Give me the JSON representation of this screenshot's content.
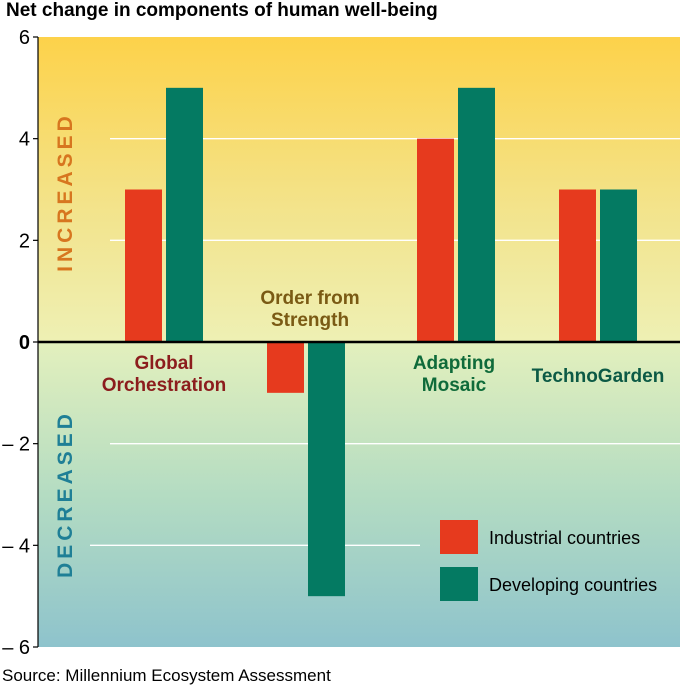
{
  "title": "Net change in components of human well-being",
  "source": "Source: Millennium Ecosystem Assessment",
  "colors": {
    "industrial": "#e63a1e",
    "developing": "#047a62",
    "increased_label": "#d7761f",
    "decreased_label": "#1f7f96",
    "label_global": "#8c1d1d",
    "label_order": "#7a5a14",
    "label_adapting": "#0f6b3a",
    "label_techno": "#0c5a45"
  },
  "chart_data": {
    "type": "bar",
    "title": "Net change in components of human well-being",
    "xlabel": "",
    "ylabel": "",
    "ylim": [
      -6,
      6
    ],
    "yticks": [
      6,
      4,
      2,
      0,
      -2,
      -4,
      -6
    ],
    "ytick_labels": [
      "6",
      "4",
      "2",
      "0",
      "– 2",
      "– 4",
      "– 6"
    ],
    "region_labels": {
      "upper": "INCREASED",
      "lower": "DECREASED"
    },
    "categories": [
      {
        "lines": [
          "Global",
          "Orchestration"
        ]
      },
      {
        "lines": [
          "Order from",
          "Strength"
        ]
      },
      {
        "lines": [
          "Adapting",
          "Mosaic"
        ]
      },
      {
        "lines": [
          "TechnoGarden"
        ]
      }
    ],
    "series": [
      {
        "name": "Industrial countries",
        "values": [
          3,
          -1,
          4,
          3
        ]
      },
      {
        "name": "Developing countries",
        "values": [
          5,
          -5,
          5,
          3
        ]
      }
    ],
    "grid": true,
    "legend_position": "bottom-right"
  }
}
